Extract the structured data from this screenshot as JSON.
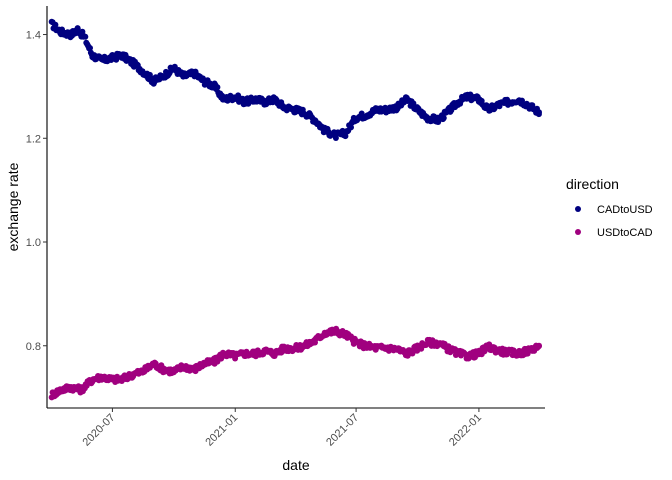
{
  "chart_data": {
    "type": "scatter",
    "xlabel": "date",
    "ylabel": "exchange rate",
    "x_range": [
      "2020-03-25",
      "2022-04-10"
    ],
    "ylim": [
      0.68,
      1.455
    ],
    "y_ticks": [
      0.8,
      1.0,
      1.2,
      1.4
    ],
    "y_tick_labels": [
      "0.8",
      "1.0",
      "1.2",
      "1.4"
    ],
    "x_ticks": [
      "2020-07-01",
      "2021-01-01",
      "2021-07-01",
      "2022-01-01"
    ],
    "x_tick_labels": [
      "2020-07",
      "2021-01",
      "2021-07",
      "2022-01"
    ],
    "grid": false,
    "legend": {
      "title": "direction",
      "position": "right",
      "entries": [
        {
          "label": "CADtoUSD",
          "color": "#000080"
        },
        {
          "label": "USDtoCAD",
          "color": "#A0007F"
        }
      ]
    },
    "series": [
      {
        "name": "CADtoUSD",
        "color": "#000080",
        "points": [
          [
            "2020-04-01",
            1.42
          ],
          [
            "2020-04-15",
            1.405
          ],
          [
            "2020-04-30",
            1.4
          ],
          [
            "2020-05-10",
            1.41
          ],
          [
            "2020-05-20",
            1.395
          ],
          [
            "2020-06-01",
            1.36
          ],
          [
            "2020-06-15",
            1.35
          ],
          [
            "2020-07-01",
            1.355
          ],
          [
            "2020-07-15",
            1.36
          ],
          [
            "2020-08-01",
            1.345
          ],
          [
            "2020-08-15",
            1.33
          ],
          [
            "2020-09-01",
            1.31
          ],
          [
            "2020-09-15",
            1.32
          ],
          [
            "2020-10-01",
            1.335
          ],
          [
            "2020-10-15",
            1.32
          ],
          [
            "2020-11-01",
            1.325
          ],
          [
            "2020-11-15",
            1.31
          ],
          [
            "2020-12-01",
            1.3
          ],
          [
            "2020-12-15",
            1.275
          ],
          [
            "2021-01-01",
            1.28
          ],
          [
            "2021-01-15",
            1.27
          ],
          [
            "2021-02-01",
            1.275
          ],
          [
            "2021-02-15",
            1.27
          ],
          [
            "2021-03-01",
            1.275
          ],
          [
            "2021-03-15",
            1.26
          ],
          [
            "2021-04-01",
            1.255
          ],
          [
            "2021-04-15",
            1.25
          ],
          [
            "2021-05-01",
            1.235
          ],
          [
            "2021-05-15",
            1.215
          ],
          [
            "2021-06-01",
            1.205
          ],
          [
            "2021-06-15",
            1.21
          ],
          [
            "2021-07-01",
            1.24
          ],
          [
            "2021-07-15",
            1.245
          ],
          [
            "2021-08-01",
            1.255
          ],
          [
            "2021-08-15",
            1.255
          ],
          [
            "2021-09-01",
            1.26
          ],
          [
            "2021-09-15",
            1.275
          ],
          [
            "2021-10-01",
            1.255
          ],
          [
            "2021-10-15",
            1.24
          ],
          [
            "2021-11-01",
            1.235
          ],
          [
            "2021-11-15",
            1.25
          ],
          [
            "2021-12-01",
            1.27
          ],
          [
            "2021-12-15",
            1.28
          ],
          [
            "2022-01-01",
            1.275
          ],
          [
            "2022-01-15",
            1.255
          ],
          [
            "2022-02-01",
            1.265
          ],
          [
            "2022-02-15",
            1.27
          ],
          [
            "2022-03-01",
            1.275
          ],
          [
            "2022-03-15",
            1.265
          ],
          [
            "2022-04-01",
            1.25
          ]
        ]
      },
      {
        "name": "USDtoCAD",
        "color": "#A0007F",
        "points": [
          [
            "2020-04-01",
            0.705
          ],
          [
            "2020-04-15",
            0.715
          ],
          [
            "2020-04-30",
            0.72
          ],
          [
            "2020-05-15",
            0.715
          ],
          [
            "2020-06-01",
            0.735
          ],
          [
            "2020-06-15",
            0.74
          ],
          [
            "2020-07-01",
            0.735
          ],
          [
            "2020-07-15",
            0.735
          ],
          [
            "2020-08-01",
            0.745
          ],
          [
            "2020-08-15",
            0.75
          ],
          [
            "2020-09-01",
            0.765
          ],
          [
            "2020-09-15",
            0.755
          ],
          [
            "2020-10-01",
            0.75
          ],
          [
            "2020-10-15",
            0.76
          ],
          [
            "2020-11-01",
            0.755
          ],
          [
            "2020-11-15",
            0.765
          ],
          [
            "2020-12-01",
            0.77
          ],
          [
            "2020-12-15",
            0.785
          ],
          [
            "2021-01-01",
            0.78
          ],
          [
            "2021-01-15",
            0.785
          ],
          [
            "2021-02-01",
            0.785
          ],
          [
            "2021-02-15",
            0.79
          ],
          [
            "2021-03-01",
            0.785
          ],
          [
            "2021-03-15",
            0.795
          ],
          [
            "2021-04-01",
            0.795
          ],
          [
            "2021-04-15",
            0.8
          ],
          [
            "2021-05-01",
            0.81
          ],
          [
            "2021-05-15",
            0.825
          ],
          [
            "2021-06-01",
            0.828
          ],
          [
            "2021-06-15",
            0.822
          ],
          [
            "2021-07-01",
            0.806
          ],
          [
            "2021-07-15",
            0.8
          ],
          [
            "2021-08-01",
            0.796
          ],
          [
            "2021-08-15",
            0.796
          ],
          [
            "2021-09-01",
            0.793
          ],
          [
            "2021-09-15",
            0.785
          ],
          [
            "2021-10-01",
            0.796
          ],
          [
            "2021-10-15",
            0.806
          ],
          [
            "2021-11-01",
            0.805
          ],
          [
            "2021-11-15",
            0.795
          ],
          [
            "2021-12-01",
            0.785
          ],
          [
            "2021-12-15",
            0.78
          ],
          [
            "2022-01-01",
            0.785
          ],
          [
            "2022-01-15",
            0.798
          ],
          [
            "2022-02-01",
            0.79
          ],
          [
            "2022-02-15",
            0.787
          ],
          [
            "2022-03-01",
            0.785
          ],
          [
            "2022-03-15",
            0.79
          ],
          [
            "2022-04-01",
            0.8
          ]
        ]
      }
    ]
  }
}
